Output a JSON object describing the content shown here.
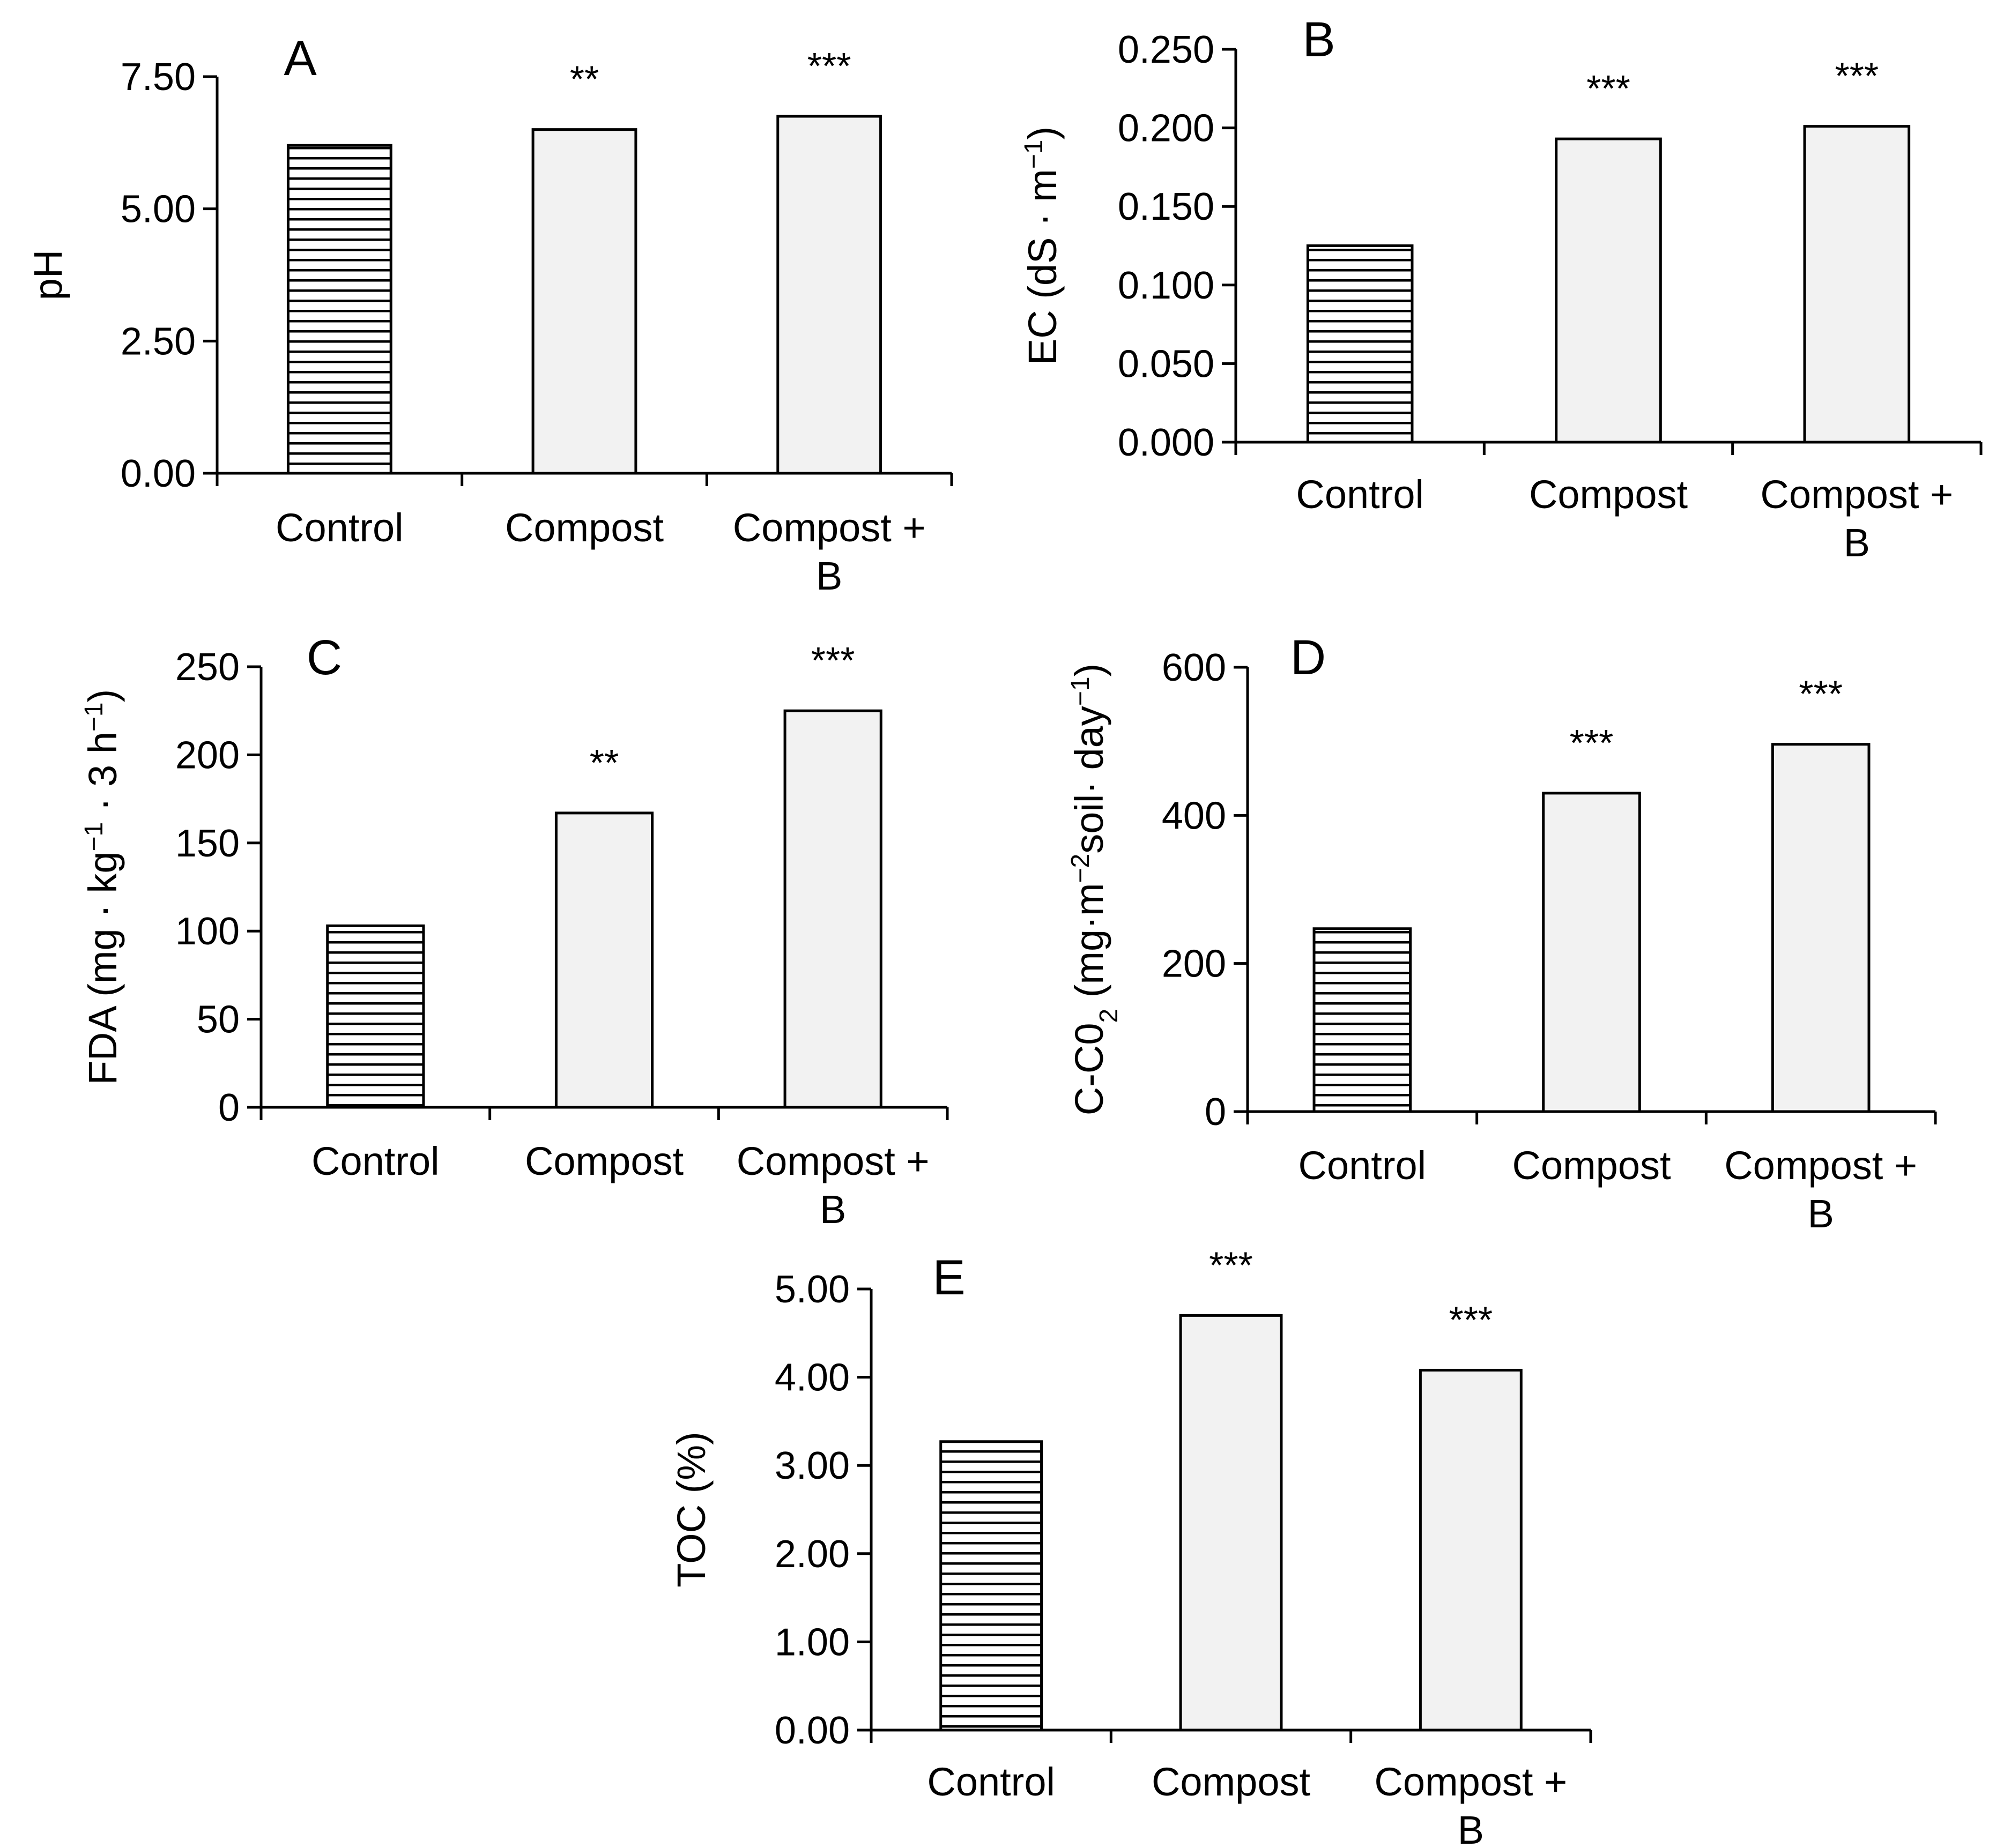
{
  "figure": {
    "colors": {
      "bar_fill": "#f2f2f2",
      "bar_stroke": "#000000",
      "stripe": "#000000",
      "background": "#ffffff"
    }
  },
  "chart_data": [
    {
      "id": "A",
      "type": "bar",
      "panel_label": "A",
      "title": "",
      "categories": [
        "Control",
        "Compost",
        "Compost + B"
      ],
      "category_lines": [
        [
          "Control"
        ],
        [
          "Compost"
        ],
        [
          "Compost +",
          "B"
        ]
      ],
      "values": [
        6.2,
        6.5,
        6.75
      ],
      "bar_styles": [
        "striped",
        "solid",
        "solid"
      ],
      "significance": [
        "",
        "**",
        "***"
      ],
      "ylabel": "pH",
      "ylabel_parts": [
        {
          "t": "pH",
          "sup": false
        }
      ],
      "ylim": [
        0,
        7.5
      ],
      "yticks": [
        0,
        2.5,
        5,
        7.5
      ],
      "ytick_labels": [
        "0.00",
        "2.50",
        "5.00",
        "7.50"
      ],
      "xlabel": "",
      "grid": false,
      "legend": false
    },
    {
      "id": "B",
      "type": "bar",
      "panel_label": "B",
      "title": "",
      "categories": [
        "Control",
        "Compost",
        "Compost + B"
      ],
      "category_lines": [
        [
          "Control"
        ],
        [
          "Compost"
        ],
        [
          "Compost +",
          "B"
        ]
      ],
      "values": [
        0.125,
        0.193,
        0.201
      ],
      "bar_styles": [
        "striped",
        "solid",
        "solid"
      ],
      "significance": [
        "",
        "***",
        "***"
      ],
      "ylabel": "EC (dS · m−1)",
      "ylabel_parts": [
        {
          "t": "EC (dS · m",
          "sup": false
        },
        {
          "t": "−1",
          "sup": true
        },
        {
          "t": ")",
          "sup": false
        }
      ],
      "ylim": [
        0,
        0.25
      ],
      "yticks": [
        0,
        0.05,
        0.1,
        0.15,
        0.2,
        0.25
      ],
      "ytick_labels": [
        "0.000",
        "0.050",
        "0.100",
        "0.150",
        "0.200",
        "0.250"
      ],
      "xlabel": "",
      "grid": false,
      "legend": false
    },
    {
      "id": "C",
      "type": "bar",
      "panel_label": "C",
      "title": "",
      "categories": [
        "Control",
        "Compost",
        "Compost + B"
      ],
      "category_lines": [
        [
          "Control"
        ],
        [
          "Compost"
        ],
        [
          "Compost +",
          "B"
        ]
      ],
      "values": [
        103,
        167,
        225
      ],
      "bar_styles": [
        "striped",
        "solid",
        "solid"
      ],
      "significance": [
        "",
        "**",
        "***"
      ],
      "ylabel": "FDA (mg · kg−1 · 3 h−1)",
      "ylabel_parts": [
        {
          "t": "FDA (mg · kg",
          "sup": false
        },
        {
          "t": "−1",
          "sup": true
        },
        {
          "t": " · 3 h",
          "sup": false
        },
        {
          "t": "−1",
          "sup": true
        },
        {
          "t": ")",
          "sup": false
        }
      ],
      "ylim": [
        0,
        250
      ],
      "yticks": [
        0,
        50,
        100,
        150,
        200,
        250
      ],
      "ytick_labels": [
        "0",
        "50",
        "100",
        "150",
        "200",
        "250"
      ],
      "xlabel": "",
      "grid": false,
      "legend": false
    },
    {
      "id": "D",
      "type": "bar",
      "panel_label": "D",
      "title": "",
      "categories": [
        "Control",
        "Compost",
        "Compost + B"
      ],
      "category_lines": [
        [
          "Control"
        ],
        [
          "Compost"
        ],
        [
          "Compost +",
          "B"
        ]
      ],
      "values": [
        247,
        430,
        496
      ],
      "bar_styles": [
        "striped",
        "solid",
        "solid"
      ],
      "significance": [
        "",
        "***",
        "***"
      ],
      "ylabel": "C-C02 (mg·m−2soil· day−1)",
      "ylabel_parts": [
        {
          "t": "C-C0",
          "sup": false
        },
        {
          "t": "2",
          "sub": true
        },
        {
          "t": " (mg·m",
          "sup": false
        },
        {
          "t": "−2",
          "sup": true
        },
        {
          "t": "soil· day",
          "sup": false
        },
        {
          "t": "−1",
          "sup": true
        },
        {
          "t": ")",
          "sup": false
        }
      ],
      "ylim": [
        0,
        600
      ],
      "yticks": [
        0,
        200,
        400,
        600
      ],
      "ytick_labels": [
        "0",
        "200",
        "400",
        "600"
      ],
      "xlabel": "",
      "grid": false,
      "legend": false
    },
    {
      "id": "E",
      "type": "bar",
      "panel_label": "E",
      "title": "",
      "categories": [
        "Control",
        "Compost",
        "Compost + B"
      ],
      "category_lines": [
        [
          "Control"
        ],
        [
          "Compost"
        ],
        [
          "Compost +",
          "B"
        ]
      ],
      "values": [
        3.27,
        4.7,
        4.08
      ],
      "bar_styles": [
        "striped",
        "solid",
        "solid"
      ],
      "significance": [
        "",
        "***",
        "***"
      ],
      "ylabel": "TOC (%)",
      "ylabel_parts": [
        {
          "t": "TOC (%)",
          "sup": false
        }
      ],
      "ylim": [
        0,
        5
      ],
      "yticks": [
        0,
        1,
        2,
        3,
        4,
        5
      ],
      "ytick_labels": [
        "0.00",
        "1.00",
        "2.00",
        "3.00",
        "4.00",
        "5.00"
      ],
      "xlabel": "",
      "grid": false,
      "legend": false
    }
  ]
}
